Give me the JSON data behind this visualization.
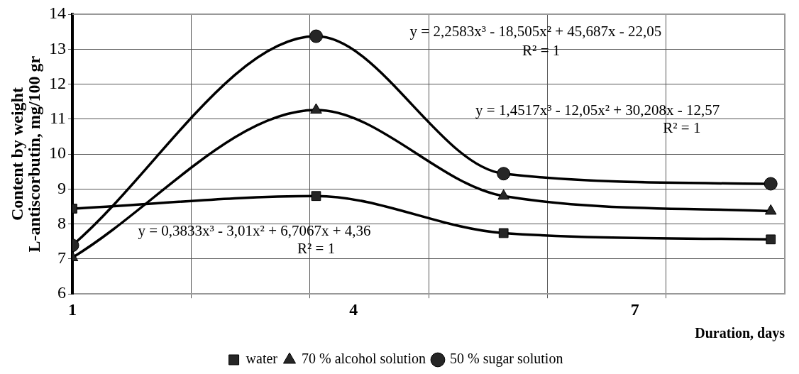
{
  "chart_data": {
    "type": "line",
    "xlabel": "Duration, days",
    "ylabel": "Content by weight\nL-antiscorbutin, mg/100 gr",
    "x": [
      1,
      3.6,
      5.6,
      8.45
    ],
    "xlim": [
      1,
      8.6
    ],
    "xticks": [
      1,
      {
        "value": 2.27,
        "label": null
      },
      {
        "value": 3.53,
        "label": null
      },
      4,
      {
        "value": 4.8,
        "label": null
      },
      {
        "value": 6.07,
        "label": null
      },
      7,
      {
        "value": 7.33,
        "label": null
      }
    ],
    "ylim": [
      6,
      14
    ],
    "yticks": [
      6,
      7,
      8,
      9,
      10,
      11,
      12,
      13,
      14
    ],
    "grid": true,
    "line_style": "solid",
    "legend": "bottom",
    "series": [
      {
        "name": "water",
        "color": "#262626",
        "marker": "square",
        "values": [
          8.44,
          8.8,
          7.74,
          7.56
        ]
      },
      {
        "name": "70 % alcohol solution",
        "color": "#262626",
        "marker": "triangle",
        "values": [
          7.04,
          11.26,
          8.8,
          8.37
        ]
      },
      {
        "name": "50 % sugar solution",
        "color": "#262626",
        "marker": "circle",
        "values": [
          7.39,
          13.37,
          9.44,
          9.15
        ]
      }
    ],
    "annotations": [
      "y = 0,3833x³ - 3,01x² + 6,7067x + 4,36",
      "R² = 1",
      "y = 1,4517x³ - 12,05x² + 30,208x - 12,57",
      "R² = 1",
      "y = 2,2583x³ - 18,505x² + 45,687x - 22,05",
      "R² = 1"
    ]
  }
}
